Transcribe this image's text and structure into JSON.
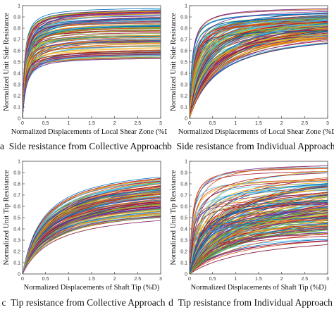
{
  "chart_data": [
    {
      "type": "line",
      "panel_letter": "a",
      "caption": "Side resistance from Collective Approach",
      "xlabel": "Normalized Displacements of Local Shear Zone (%D)",
      "ylabel": "Normalized Unit Side Resistance",
      "xlim": [
        0,
        3
      ],
      "ylim": [
        0,
        1
      ],
      "xticks": [
        "0",
        "0.5",
        "1",
        "1.5",
        "2",
        "2.5",
        "3"
      ],
      "yticks": [
        "0",
        "0.1",
        "0.2",
        "0.3",
        "0.4",
        "0.5",
        "0.6",
        "0.7",
        "0.8",
        "0.9",
        "1"
      ],
      "grid": false,
      "curve_family": {
        "model": "hyperbolic",
        "count": 130,
        "asymptote_min": 0.54,
        "asymptote_max": 0.99,
        "half_point_min": 0.04,
        "half_point_max": 0.1
      }
    },
    {
      "type": "line",
      "panel_letter": "b",
      "caption": "Side resistance from Individual Approach",
      "xlabel": "Normalized Displacements of Local Shear Zone (%D)",
      "ylabel": "Normalized Unit Side Resistance",
      "xlim": [
        0,
        3
      ],
      "ylim": [
        0,
        1
      ],
      "xticks": [
        "0",
        "0.5",
        "1",
        "1.5",
        "2",
        "2.5",
        "3"
      ],
      "yticks": [
        "0",
        "0.1",
        "0.2",
        "0.3",
        "0.4",
        "0.5",
        "0.6",
        "0.7",
        "0.8",
        "0.9",
        "1"
      ],
      "grid": false,
      "curve_family": {
        "model": "hyperbolic",
        "count": 150,
        "asymptote_min": 0.78,
        "asymptote_max": 1.0,
        "half_point_min": 0.05,
        "half_point_max": 0.7
      }
    },
    {
      "type": "line",
      "panel_letter": "c",
      "caption": "Tip resistance from Collective Approach",
      "xlabel": "Normalized Displacements of Shaft Tip (%D)",
      "ylabel": "Normalized Unit Tip Resistance",
      "xlim": [
        0,
        3
      ],
      "ylim": [
        0,
        1
      ],
      "xticks": [
        "0",
        "0.5",
        "1",
        "1.5",
        "2",
        "2.5",
        "3"
      ],
      "yticks": [
        "0",
        "0.1",
        "0.2",
        "0.3",
        "0.4",
        "0.5",
        "0.6",
        "0.7",
        "0.8",
        "0.9",
        "1"
      ],
      "grid": false,
      "curve_family": {
        "model": "hyperbolic",
        "count": 130,
        "asymptote_min": 0.58,
        "asymptote_max": 1.0,
        "half_point_min": 0.45,
        "half_point_max": 0.75
      }
    },
    {
      "type": "line",
      "panel_letter": "d",
      "caption": "Tip resistance from Individual Approach",
      "xlabel": "Normalized Displacements of Shaft Tip (%D)",
      "ylabel": "Normalized Unit Tip Resistance",
      "xlim": [
        0,
        3
      ],
      "ylim": [
        0,
        1
      ],
      "xticks": [
        "0",
        "0.5",
        "1",
        "1.5",
        "2",
        "2.5",
        "3"
      ],
      "yticks": [
        "0",
        "0.1",
        "0.2",
        "0.3",
        "0.4",
        "0.5",
        "0.6",
        "0.7",
        "0.8",
        "0.9",
        "1"
      ],
      "grid": false,
      "curve_family": {
        "model": "hyperbolic",
        "count": 170,
        "asymptote_min": 0.35,
        "asymptote_max": 1.0,
        "half_point_min": 0.05,
        "half_point_max": 1.5
      }
    }
  ],
  "colors": {
    "palette": [
      "#0072BD",
      "#D95319",
      "#EDB120",
      "#7E2F8E",
      "#77AC30",
      "#4DBEEE",
      "#A2142F"
    ],
    "axes": "#444444",
    "background": "#ffffff"
  }
}
